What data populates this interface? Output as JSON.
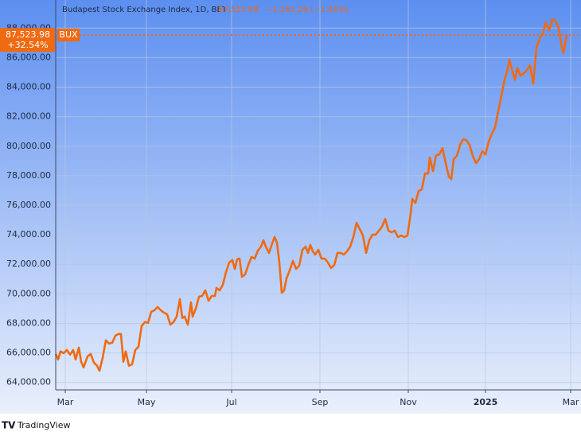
{
  "chart_data": {
    "type": "line",
    "title": "Budapest Stock Exchange Index, 1D, BET",
    "header_price": "87,523.98",
    "header_change": "−1,261.26 (−1.46%)",
    "last_label": "87,523.98",
    "change_pct_label": "+32.54%",
    "brand": "TradingView",
    "grid": true,
    "xlim": [
      0,
      660
    ],
    "ylim": [
      63500,
      89900
    ],
    "yticks": [
      {
        "value": 64000,
        "label": "64,000.00"
      },
      {
        "value": 66000,
        "label": "66,000.00"
      },
      {
        "value": 68000,
        "label": "68,000.00"
      },
      {
        "value": 70000,
        "label": "70,000.00"
      },
      {
        "value": 72000,
        "label": "72,000.00"
      },
      {
        "value": 74000,
        "label": "74,000.00"
      },
      {
        "value": 76000,
        "label": "76,000.00"
      },
      {
        "value": 78000,
        "label": "78,000.00"
      },
      {
        "value": 80000,
        "label": "80,000.00"
      },
      {
        "value": 82000,
        "label": "82,000.00"
      },
      {
        "value": 84000,
        "label": "84,000.00"
      },
      {
        "value": 86000,
        "label": "86,000.00"
      },
      {
        "value": 88000,
        "label": "88,000.00"
      }
    ],
    "xticks": [
      {
        "value": 12,
        "label": "Mar"
      },
      {
        "value": 114,
        "label": "May"
      },
      {
        "value": 221,
        "label": "Jul"
      },
      {
        "value": 332,
        "label": "Sep"
      },
      {
        "value": 443,
        "label": "Nov"
      },
      {
        "value": 540,
        "label": "2025"
      },
      {
        "value": 647,
        "label": "Mar"
      }
    ],
    "x": [
      0,
      3,
      6,
      10,
      14,
      18,
      22,
      25,
      29,
      32,
      35,
      40,
      44,
      48,
      52,
      55,
      59,
      63,
      67,
      71,
      75,
      79,
      82,
      85,
      88,
      92,
      96,
      100,
      104,
      108,
      112,
      116,
      120,
      124,
      128,
      132,
      136,
      140,
      144,
      148,
      152,
      156,
      159,
      162,
      166,
      170,
      172,
      176,
      180,
      184,
      188,
      192,
      196,
      200,
      202,
      206,
      210,
      214,
      218,
      222,
      225,
      228,
      231,
      234,
      238,
      242,
      246,
      250,
      254,
      258,
      261,
      264,
      268,
      272,
      275,
      278,
      281,
      284,
      287,
      290,
      294,
      298,
      302,
      306,
      310,
      314,
      317,
      320,
      323,
      326,
      330,
      334,
      338,
      342,
      346,
      350,
      354,
      358,
      362,
      366,
      370,
      374,
      378,
      382,
      386,
      390,
      394,
      398,
      402,
      406,
      410,
      414,
      418,
      422,
      426,
      430,
      434,
      438,
      442,
      446,
      448,
      452,
      456,
      460,
      464,
      468,
      470,
      474,
      478,
      482,
      486,
      490,
      494,
      497,
      500,
      504,
      508,
      512,
      516,
      520,
      524,
      528,
      532,
      536,
      540,
      544,
      548,
      552,
      556,
      560,
      564,
      567,
      570,
      574,
      577,
      580,
      584,
      588,
      592,
      596,
      600,
      604,
      608,
      612,
      616,
      620,
      624,
      628,
      632,
      636,
      638,
      642
    ],
    "series": [
      {
        "name": "BUX",
        "color": "#ef6a12",
        "values": [
          65930,
          65560,
          66100,
          65990,
          66200,
          65880,
          66200,
          65560,
          66360,
          65400,
          65020,
          65770,
          65930,
          65340,
          65130,
          64800,
          65670,
          66850,
          66630,
          66690,
          67170,
          67280,
          67280,
          65400,
          66100,
          65130,
          65230,
          66200,
          66420,
          67820,
          68090,
          68030,
          68790,
          68890,
          69110,
          68890,
          68730,
          68620,
          67920,
          68090,
          68460,
          69650,
          68360,
          68460,
          67920,
          69430,
          68460,
          69000,
          69810,
          69860,
          70240,
          69540,
          69860,
          69860,
          70400,
          70240,
          70620,
          71480,
          72120,
          72290,
          71690,
          72340,
          72390,
          71150,
          71320,
          71960,
          72500,
          72390,
          72930,
          73200,
          73630,
          73200,
          72770,
          73420,
          73850,
          73470,
          72120,
          70080,
          70240,
          71050,
          71590,
          72230,
          71690,
          71910,
          72980,
          73200,
          72770,
          73310,
          72880,
          72660,
          72980,
          72390,
          72390,
          72120,
          71750,
          71960,
          72770,
          72770,
          72660,
          72880,
          73200,
          73850,
          74810,
          74380,
          73950,
          72770,
          73630,
          74010,
          74010,
          74280,
          74550,
          75080,
          74280,
          74170,
          74280,
          73850,
          73950,
          73850,
          73950,
          75460,
          76430,
          76160,
          76970,
          77070,
          78150,
          78150,
          79230,
          78310,
          79390,
          79440,
          79870,
          78850,
          77940,
          77770,
          79120,
          79340,
          80090,
          80470,
          80410,
          80090,
          79340,
          78850,
          79120,
          79660,
          79440,
          80300,
          80840,
          81270,
          82350,
          83430,
          84500,
          85040,
          85850,
          85040,
          84500,
          85310,
          84770,
          84930,
          85150,
          85470,
          84230,
          86650,
          87300,
          87620,
          88380,
          87840,
          88590,
          88480,
          88000,
          86650,
          86330,
          87523.98
        ]
      }
    ]
  }
}
